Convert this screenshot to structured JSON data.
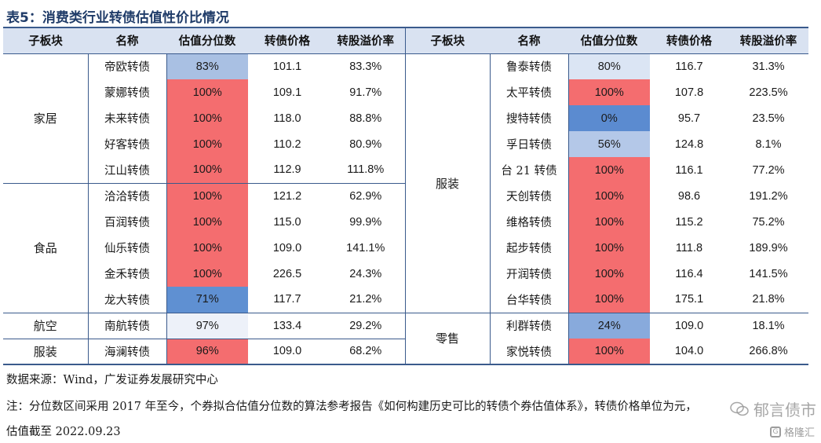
{
  "title": "表5：消费类行业转债估值性价比情况",
  "headers": [
    "子板块",
    "名称",
    "估值分位数",
    "转债价格",
    "转股溢价率"
  ],
  "colors": {
    "high": "#f46d6f",
    "mid": "#aac0e4",
    "low": "#5b8bd0",
    "header": "#d9e2f1",
    "rule": "#3a5a8c"
  },
  "left_groups": [
    {
      "sector": "家居",
      "rows": [
        {
          "name": "帝欧转债",
          "pct": "83%",
          "pct_value": 0.83,
          "price": "101.1",
          "premium": "83.3%"
        },
        {
          "name": "蒙娜转债",
          "pct": "100%",
          "pct_value": 1.0,
          "price": "109.1",
          "premium": "91.7%"
        },
        {
          "name": "未来转债",
          "pct": "100%",
          "pct_value": 1.0,
          "price": "118.0",
          "premium": "88.8%"
        },
        {
          "name": "好客转债",
          "pct": "100%",
          "pct_value": 1.0,
          "price": "110.2",
          "premium": "80.9%"
        },
        {
          "name": "江山转债",
          "pct": "100%",
          "pct_value": 1.0,
          "price": "112.9",
          "premium": "111.8%"
        }
      ]
    },
    {
      "sector": "食品",
      "rows": [
        {
          "name": "洽洽转债",
          "pct": "100%",
          "pct_value": 1.0,
          "price": "121.2",
          "premium": "62.9%"
        },
        {
          "name": "百润转债",
          "pct": "100%",
          "pct_value": 1.0,
          "price": "115.0",
          "premium": "99.9%"
        },
        {
          "name": "仙乐转债",
          "pct": "100%",
          "pct_value": 1.0,
          "price": "109.0",
          "premium": "141.1%"
        },
        {
          "name": "金禾转债",
          "pct": "100%",
          "pct_value": 1.0,
          "price": "226.5",
          "premium": "24.3%"
        },
        {
          "name": "龙大转债",
          "pct": "71%",
          "pct_value": 0.71,
          "price": "117.7",
          "premium": "21.2%"
        }
      ]
    },
    {
      "sector": "航空",
      "rows": [
        {
          "name": "南航转债",
          "pct": "97%",
          "pct_value": 0.97,
          "price": "133.4",
          "premium": "29.2%"
        }
      ]
    },
    {
      "sector": "服装",
      "rows": [
        {
          "name": "海澜转债",
          "pct": "96%",
          "pct_value": 0.96,
          "price": "109.0",
          "premium": "68.2%"
        }
      ]
    }
  ],
  "right_groups": [
    {
      "sector": "服装",
      "rows": [
        {
          "name": "鲁泰转债",
          "pct": "80%",
          "pct_value": 0.8,
          "price": "116.7",
          "premium": "31.3%"
        },
        {
          "name": "太平转债",
          "pct": "100%",
          "pct_value": 1.0,
          "price": "107.8",
          "premium": "223.5%"
        },
        {
          "name": "搜特转债",
          "pct": "0%",
          "pct_value": 0.0,
          "price": "95.7",
          "premium": "23.5%"
        },
        {
          "name": "孚日转债",
          "pct": "56%",
          "pct_value": 0.56,
          "price": "124.8",
          "premium": "8.1%"
        },
        {
          "name": "台 21 转债",
          "pct": "100%",
          "pct_value": 1.0,
          "price": "116.1",
          "premium": "77.2%"
        },
        {
          "name": "天创转债",
          "pct": "100%",
          "pct_value": 1.0,
          "price": "98.6",
          "premium": "191.2%"
        },
        {
          "name": "维格转债",
          "pct": "100%",
          "pct_value": 1.0,
          "price": "115.2",
          "premium": "75.2%"
        },
        {
          "name": "起步转债",
          "pct": "100%",
          "pct_value": 1.0,
          "price": "111.8",
          "premium": "189.9%"
        },
        {
          "name": "开润转债",
          "pct": "100%",
          "pct_value": 1.0,
          "price": "116.4",
          "premium": "141.5%"
        },
        {
          "name": "台华转债",
          "pct": "100%",
          "pct_value": 1.0,
          "price": "175.1",
          "premium": "21.8%"
        }
      ]
    },
    {
      "sector": "零售",
      "rows": [
        {
          "name": "利群转债",
          "pct": "24%",
          "pct_value": 0.24,
          "price": "109.0",
          "premium": "18.1%"
        },
        {
          "name": "家悦转债",
          "pct": "100%",
          "pct_value": 1.0,
          "price": "104.0",
          "premium": "266.8%"
        }
      ]
    }
  ],
  "notes": {
    "source": "数据来源：Wind，广发证券发展研究中心",
    "note": "注：分位数区间采用 2017 年至今，个券拟合估值分位数的算法参考报告《如何构建历史可比的转债个券估值体系》，转债价格单位为元，",
    "date": "估值截至 2022.09.23"
  },
  "watermark": {
    "account": "郁言债市",
    "site": "格隆汇"
  }
}
